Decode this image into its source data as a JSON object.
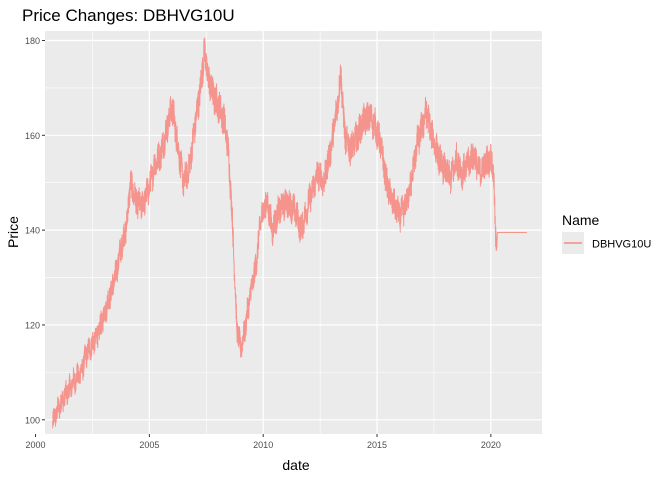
{
  "chart_data": {
    "type": "line",
    "title": "Price Changes: DBHVG10U",
    "xlabel": "date",
    "ylabel": "Price",
    "xlim": [
      "2000-06-01",
      "2022-04-01"
    ],
    "ylim": [
      97,
      182
    ],
    "x_ticks": [
      "2000",
      "2005",
      "2010",
      "2015",
      "2020"
    ],
    "y_ticks": [
      100,
      120,
      140,
      160,
      180
    ],
    "grid": true,
    "legend": {
      "title": "Name",
      "placement": "right"
    },
    "series": [
      {
        "name": "DBHVG10U",
        "color": "#F8766D",
        "points": [
          [
            "2000-10-01",
            99.5
          ],
          [
            "2001-03-01",
            104
          ],
          [
            "2001-06-01",
            106
          ],
          [
            "2001-09-01",
            108
          ],
          [
            "2002-01-01",
            110
          ],
          [
            "2002-04-01",
            114
          ],
          [
            "2002-07-01",
            116
          ],
          [
            "2002-10-01",
            118
          ],
          [
            "2003-01-01",
            122
          ],
          [
            "2003-04-01",
            126
          ],
          [
            "2003-07-01",
            130
          ],
          [
            "2003-10-01",
            136
          ],
          [
            "2004-01-01",
            141
          ],
          [
            "2004-03-01",
            150
          ],
          [
            "2004-06-01",
            146
          ],
          [
            "2004-09-01",
            145
          ],
          [
            "2005-01-01",
            149
          ],
          [
            "2005-04-01",
            154
          ],
          [
            "2005-07-01",
            156
          ],
          [
            "2005-10-01",
            161
          ],
          [
            "2006-01-01",
            166
          ],
          [
            "2006-04-01",
            158
          ],
          [
            "2006-07-01",
            150
          ],
          [
            "2006-10-01",
            153
          ],
          [
            "2007-01-01",
            162
          ],
          [
            "2007-04-01",
            170
          ],
          [
            "2007-06-01",
            178
          ],
          [
            "2007-08-01",
            172
          ],
          [
            "2007-11-01",
            168
          ],
          [
            "2008-02-01",
            166
          ],
          [
            "2008-05-01",
            162
          ],
          [
            "2008-07-01",
            155
          ],
          [
            "2008-09-01",
            140
          ],
          [
            "2008-11-01",
            120
          ],
          [
            "2009-01-01",
            115
          ],
          [
            "2009-03-01",
            118
          ],
          [
            "2009-06-01",
            126
          ],
          [
            "2009-09-01",
            132
          ],
          [
            "2009-12-01",
            143
          ],
          [
            "2010-03-01",
            146
          ],
          [
            "2010-06-01",
            140
          ],
          [
            "2010-09-01",
            144
          ],
          [
            "2011-01-01",
            146
          ],
          [
            "2011-06-01",
            144
          ],
          [
            "2011-09-01",
            140
          ],
          [
            "2012-01-01",
            146
          ],
          [
            "2012-06-01",
            152
          ],
          [
            "2012-09-01",
            150
          ],
          [
            "2013-01-01",
            158
          ],
          [
            "2013-04-01",
            166
          ],
          [
            "2013-06-01",
            173
          ],
          [
            "2013-08-01",
            160
          ],
          [
            "2013-11-01",
            157
          ],
          [
            "2014-03-01",
            160
          ],
          [
            "2014-06-01",
            163
          ],
          [
            "2014-09-01",
            164
          ],
          [
            "2014-12-01",
            162
          ],
          [
            "2015-03-01",
            158
          ],
          [
            "2015-06-01",
            150
          ],
          [
            "2015-09-01",
            146
          ],
          [
            "2016-01-01",
            143
          ],
          [
            "2016-04-01",
            145
          ],
          [
            "2016-07-01",
            150
          ],
          [
            "2016-10-01",
            158
          ],
          [
            "2017-01-01",
            162
          ],
          [
            "2017-03-01",
            165
          ],
          [
            "2017-06-01",
            160
          ],
          [
            "2017-09-01",
            156
          ],
          [
            "2017-12-01",
            153
          ],
          [
            "2018-04-01",
            151
          ],
          [
            "2018-07-01",
            155
          ],
          [
            "2018-10-01",
            152
          ],
          [
            "2019-01-01",
            154
          ],
          [
            "2019-04-01",
            156
          ],
          [
            "2019-07-01",
            152
          ],
          [
            "2019-10-01",
            154
          ],
          [
            "2020-01-01",
            155
          ],
          [
            "2020-02-15",
            152
          ],
          [
            "2020-03-15",
            138
          ],
          [
            "2020-04-15",
            139.5
          ],
          [
            "2021-08-01",
            139.5
          ]
        ]
      }
    ]
  }
}
